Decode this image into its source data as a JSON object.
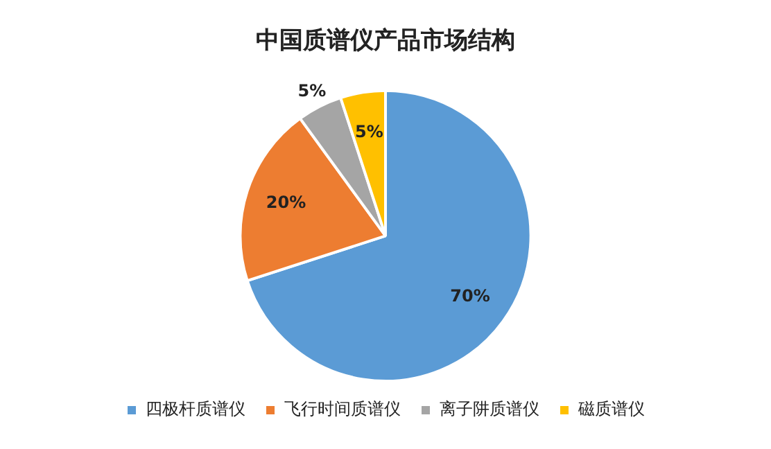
{
  "chart_data": {
    "type": "pie",
    "title": "中国质谱仪产品市场结构",
    "categories": [
      "四极杆质谱仪",
      "飞行时间质谱仪",
      "离子阱质谱仪",
      "磁质谱仪"
    ],
    "values": [
      70,
      20,
      5,
      5
    ],
    "colors": [
      "#5b9bd5",
      "#ed7d31",
      "#a5a5a5",
      "#ffc000"
    ],
    "value_labels": [
      "70%",
      "20%",
      "5%",
      "5%"
    ],
    "legend": "bottom"
  }
}
